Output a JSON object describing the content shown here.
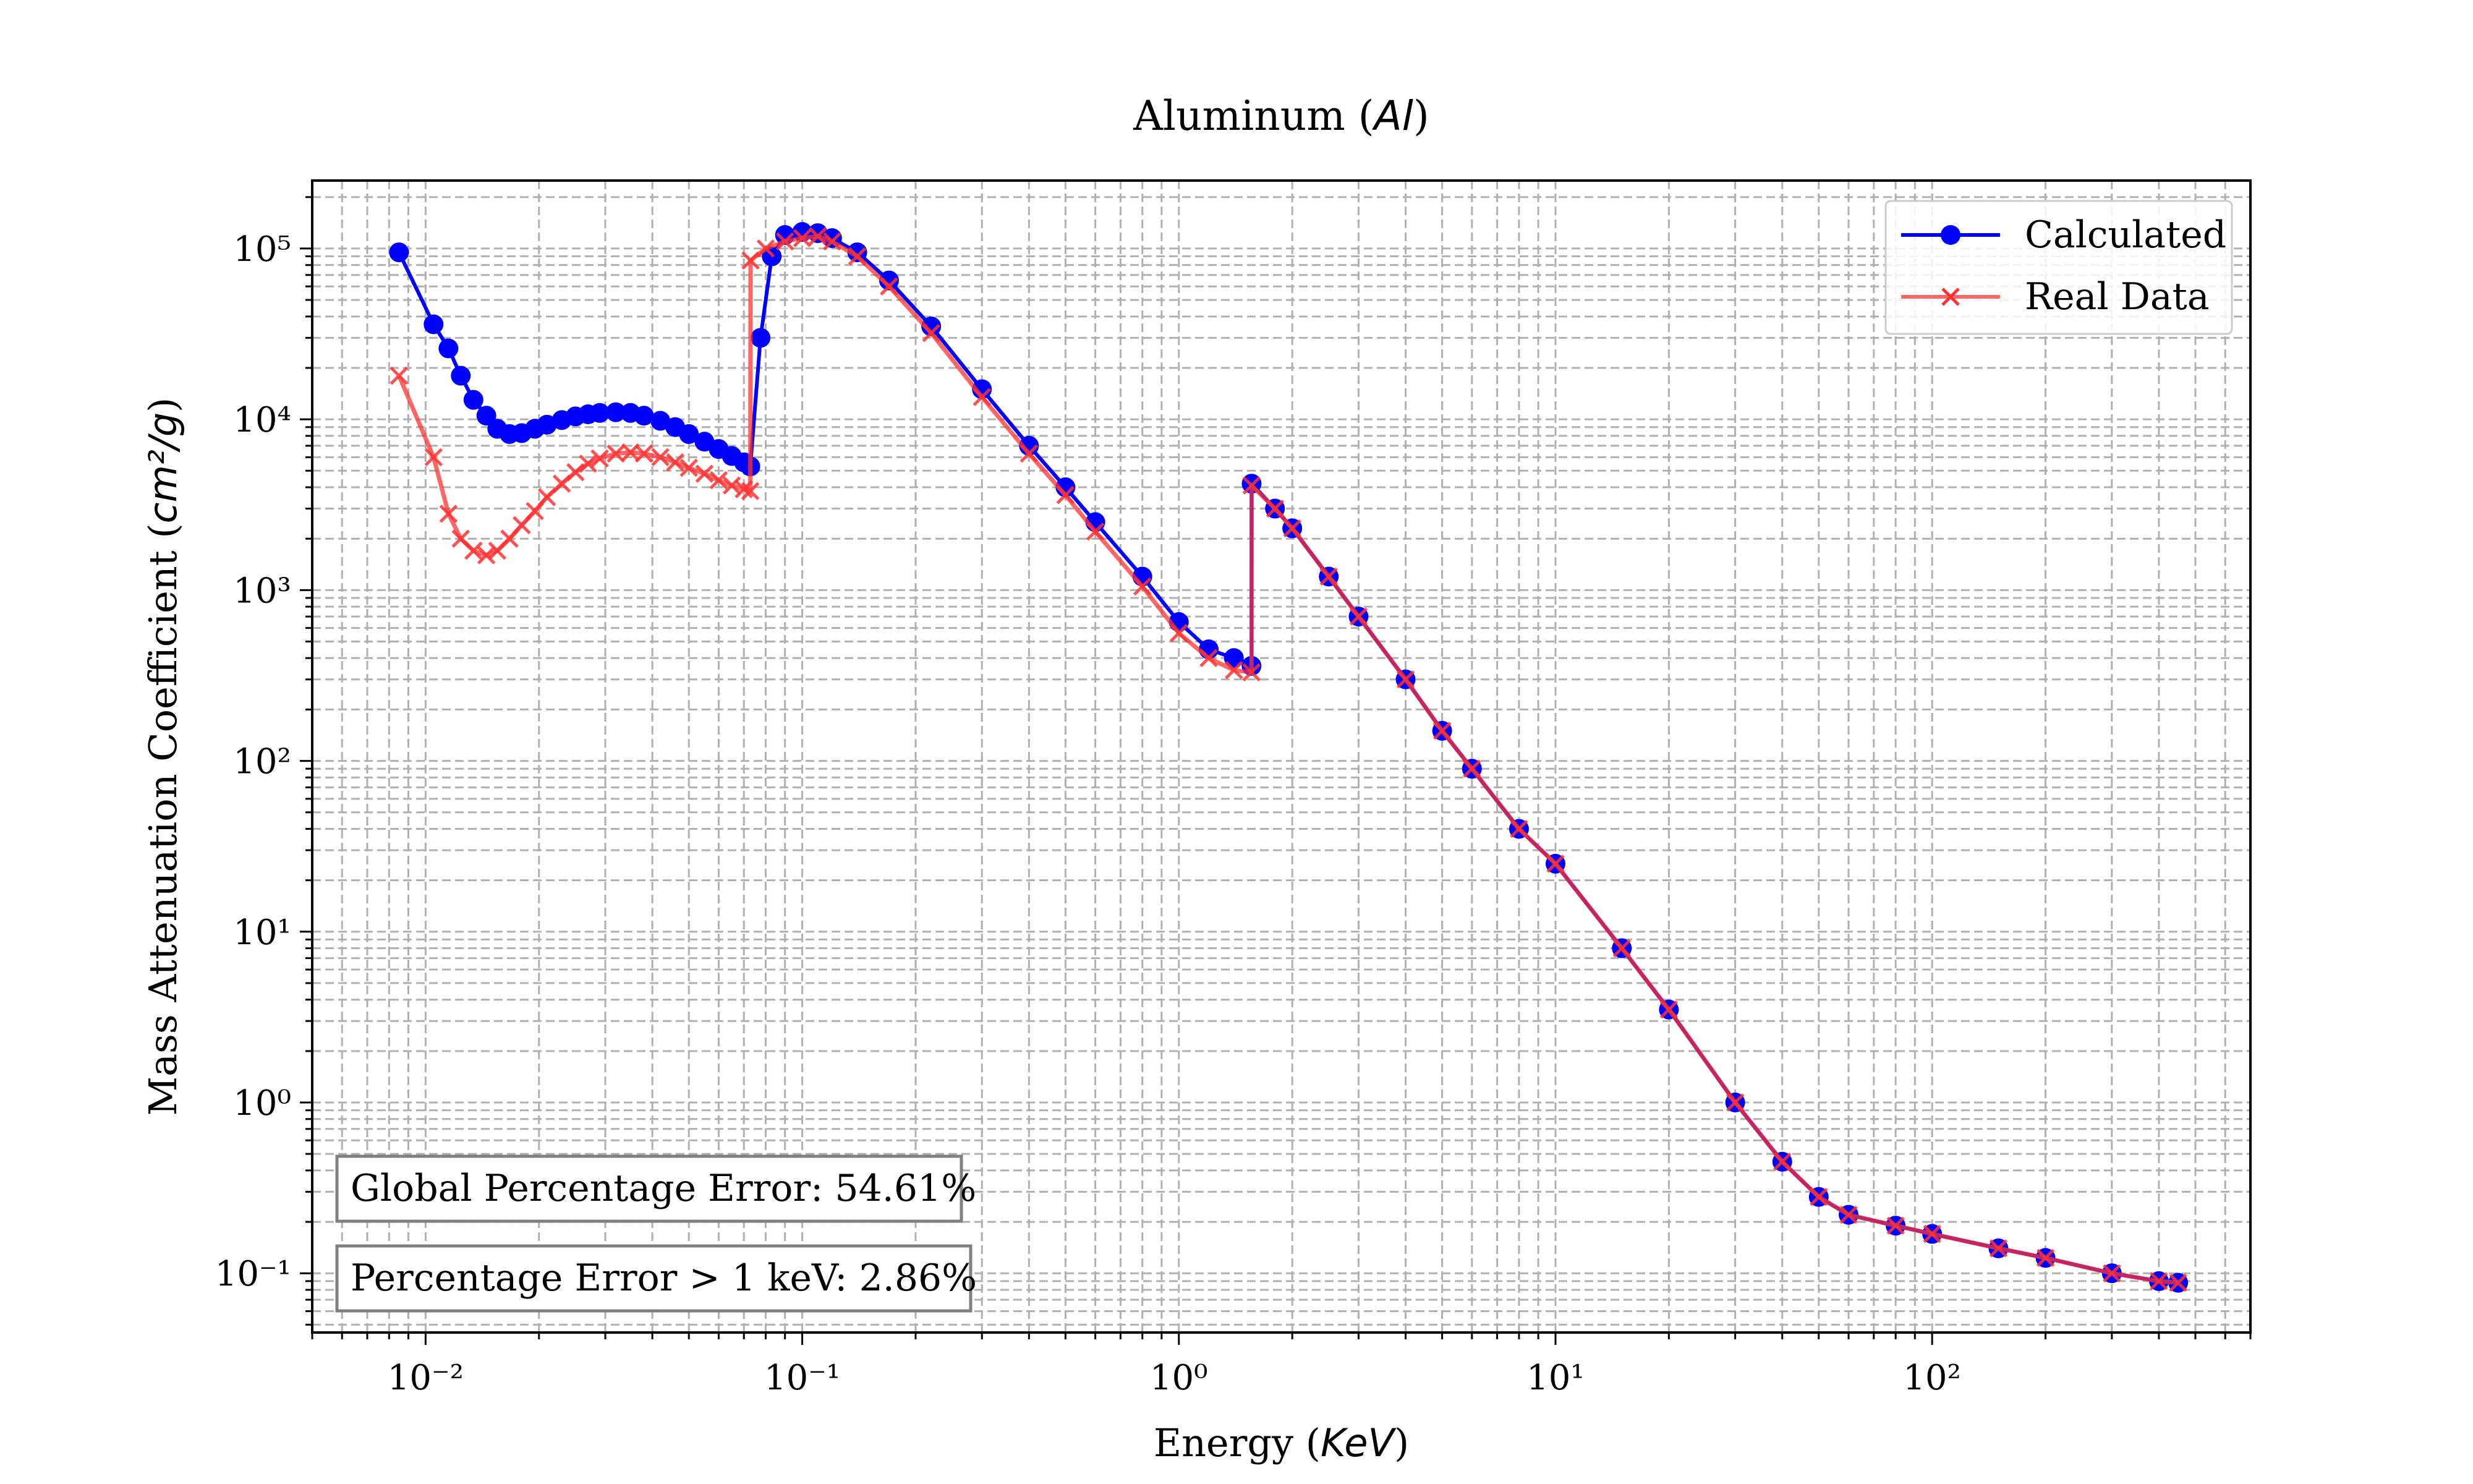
{
  "chart_data": {
    "type": "line",
    "title": "Aluminum",
    "title_symbol": "Al",
    "xlabel": "Energy",
    "xlabel_unit": "KeV",
    "ylabel": "Mass Attenuation Coefficient",
    "ylabel_unit": "cm²/g",
    "x_scale": "log",
    "y_scale": "log",
    "xlim": [
      0.005,
      700
    ],
    "ylim": [
      0.045,
      250000
    ],
    "x_tick_labels": [
      "10⁻²",
      "10⁻¹",
      "10⁰",
      "10¹",
      "10²"
    ],
    "y_tick_labels": [
      "10⁻¹",
      "10⁰",
      "10¹",
      "10²",
      "10³",
      "10⁴",
      "10⁵"
    ],
    "grid": true,
    "legend_position": "top-right",
    "series": [
      {
        "name": "Calculated",
        "color": "#0000ff",
        "marker": "circle",
        "x": [
          0.0085,
          0.0105,
          0.0115,
          0.0124,
          0.0134,
          0.0145,
          0.0155,
          0.0167,
          0.018,
          0.0195,
          0.021,
          0.023,
          0.025,
          0.027,
          0.029,
          0.032,
          0.035,
          0.038,
          0.042,
          0.046,
          0.05,
          0.055,
          0.06,
          0.065,
          0.07,
          0.0728,
          0.0775,
          0.083,
          0.09,
          0.1,
          0.11,
          0.12,
          0.14,
          0.17,
          0.22,
          0.3,
          0.4,
          0.5,
          0.6,
          0.8,
          1.0,
          1.2,
          1.4,
          1.559,
          1.56,
          1.8,
          2.0,
          2.5,
          3.0,
          4.0,
          5.0,
          6.0,
          8.0,
          10,
          15,
          20,
          30,
          40,
          50,
          60,
          80,
          100,
          150,
          200,
          300,
          400,
          450
        ],
        "y": [
          95000,
          36000,
          26000,
          18000,
          13000,
          10500,
          8800,
          8200,
          8300,
          8800,
          9300,
          9900,
          10400,
          10700,
          10900,
          11000,
          10900,
          10500,
          9800,
          9000,
          8200,
          7400,
          6700,
          6100,
          5600,
          5300,
          30000,
          90000,
          120000,
          125000,
          123000,
          115000,
          95000,
          65000,
          35000,
          15000,
          7000,
          4000,
          2500,
          1200,
          650,
          450,
          400,
          360,
          4200,
          3000,
          2300,
          1200,
          700,
          300,
          150,
          90,
          40,
          25,
          8,
          3.5,
          1.0,
          0.45,
          0.28,
          0.22,
          0.19,
          0.17,
          0.14,
          0.123,
          0.1,
          0.09,
          0.088
        ]
      },
      {
        "name": "Real Data",
        "color": "#ff3333",
        "marker": "x",
        "x": [
          0.0085,
          0.0105,
          0.0115,
          0.0124,
          0.0134,
          0.0145,
          0.0155,
          0.0167,
          0.018,
          0.0195,
          0.021,
          0.023,
          0.025,
          0.027,
          0.029,
          0.032,
          0.035,
          0.038,
          0.042,
          0.046,
          0.05,
          0.055,
          0.06,
          0.065,
          0.07,
          0.0728,
          0.0729,
          0.08,
          0.09,
          0.1,
          0.11,
          0.12,
          0.14,
          0.17,
          0.22,
          0.3,
          0.4,
          0.5,
          0.6,
          0.8,
          1.0,
          1.2,
          1.4,
          1.559,
          1.56,
          1.8,
          2.0,
          2.5,
          3.0,
          4.0,
          5.0,
          6.0,
          8.0,
          10,
          15,
          20,
          30,
          40,
          50,
          60,
          80,
          100,
          150,
          200,
          300,
          400,
          450
        ],
        "y": [
          18000,
          6000,
          2800,
          2000,
          1700,
          1600,
          1700,
          2000,
          2400,
          2900,
          3500,
          4200,
          4900,
          5500,
          5900,
          6300,
          6400,
          6300,
          6000,
          5600,
          5200,
          4800,
          4400,
          4100,
          3900,
          3800,
          85000,
          100000,
          110000,
          115000,
          118000,
          110000,
          90000,
          60000,
          32000,
          13500,
          6300,
          3600,
          2200,
          1050,
          560,
          400,
          340,
          330,
          4100,
          3000,
          2300,
          1200,
          700,
          300,
          150,
          90,
          40,
          25,
          8,
          3.5,
          1.0,
          0.45,
          0.28,
          0.22,
          0.19,
          0.17,
          0.14,
          0.123,
          0.1,
          0.09,
          0.088
        ]
      }
    ],
    "annotations": [
      "Global Percentage Error: 54.61%",
      "Percentage Error > 1 keV: 2.86%"
    ]
  }
}
